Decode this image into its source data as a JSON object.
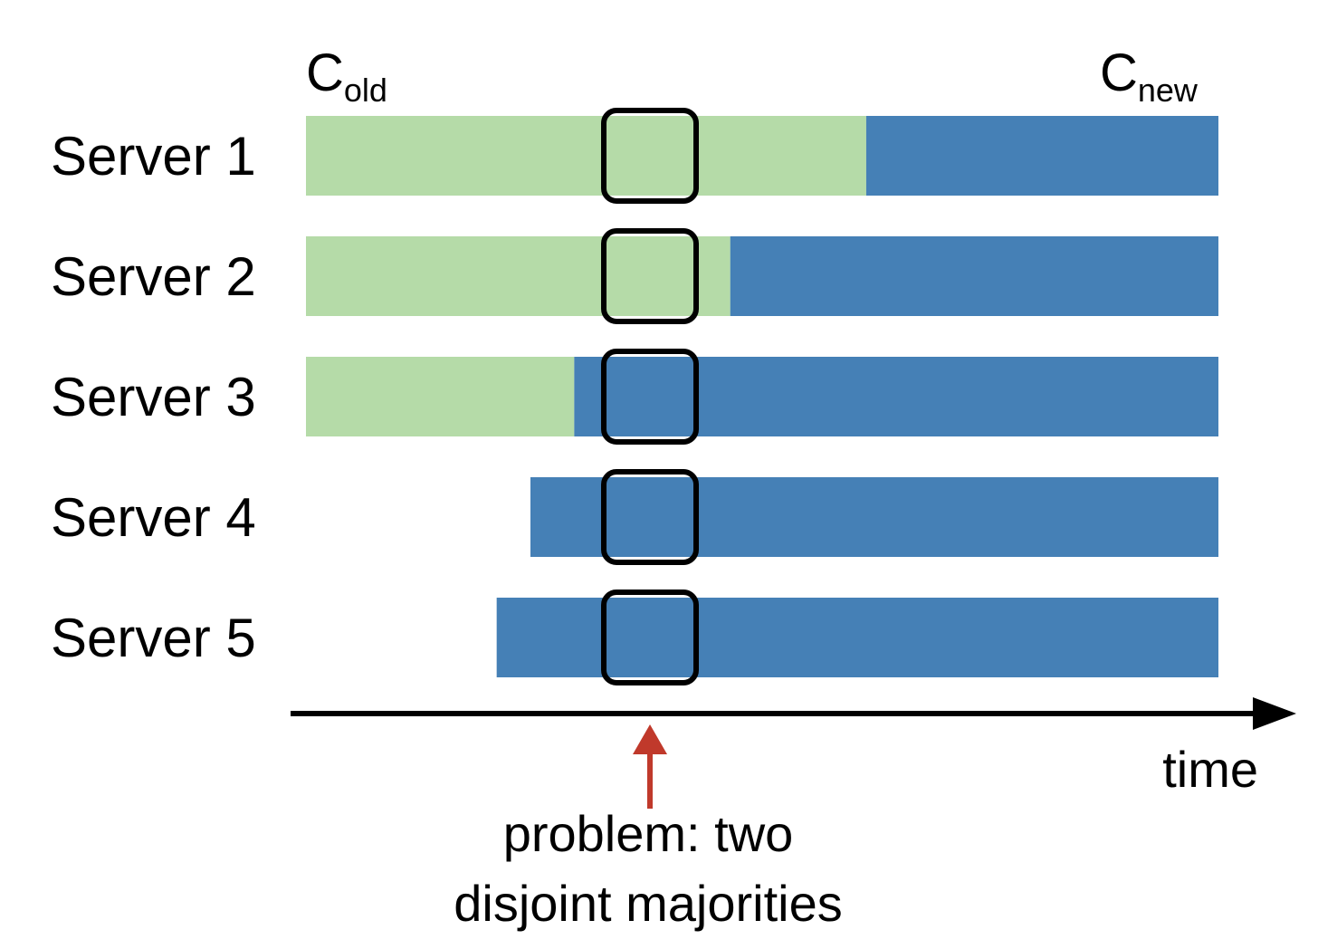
{
  "config_labels": {
    "old": {
      "base": "C",
      "sub": "old"
    },
    "new": {
      "base": "C",
      "sub": "new"
    }
  },
  "servers": [
    {
      "label": "Server 1",
      "starts": true,
      "switch_fraction": 0.614
    },
    {
      "label": "Server 2",
      "starts": true,
      "switch_fraction": 0.465
    },
    {
      "label": "Server 3",
      "starts": true,
      "switch_fraction": 0.294
    },
    {
      "label": "Server 4",
      "starts": false,
      "join_fraction": 0.246
    },
    {
      "label": "Server 5",
      "starts": false,
      "join_fraction": 0.209
    }
  ],
  "highlight_time_fraction": 0.376,
  "colors": {
    "old": "#b5dba8",
    "new": "#4580b6",
    "arrow": "#c0392b",
    "axis": "#000000"
  },
  "axis": {
    "label": "time"
  },
  "annotation": {
    "lines": [
      "problem: two",
      "disjoint majorities"
    ]
  }
}
